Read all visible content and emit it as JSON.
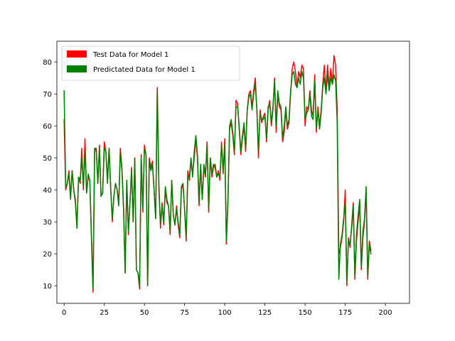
{
  "chart_data": {
    "type": "line",
    "title": "",
    "xlabel": "",
    "ylabel": "",
    "xlim": [
      -4.5,
      215
    ],
    "ylim": [
      4.5,
      86.5
    ],
    "x_ticks": [
      0,
      25,
      50,
      75,
      100,
      125,
      150,
      175,
      200
    ],
    "y_ticks": [
      10,
      20,
      30,
      40,
      50,
      60,
      70,
      80
    ],
    "grid": false,
    "legend_position": "top-left",
    "series": [
      {
        "name": "Test Data for Model 1",
        "color": "#ff0000",
        "values": [
          62,
          40,
          42,
          46,
          38,
          46,
          40,
          37,
          28,
          44,
          42,
          53,
          40,
          56,
          39,
          44,
          43,
          25,
          8,
          52,
          53,
          42,
          54,
          38,
          39,
          55,
          52,
          43,
          53,
          41,
          30,
          38,
          42,
          40,
          36,
          53,
          47,
          35,
          14,
          43,
          26,
          36,
          47,
          30,
          50,
          15,
          14,
          9,
          51,
          33,
          54,
          51,
          10,
          50,
          47,
          49,
          40,
          31,
          72,
          42,
          28,
          36,
          29,
          40,
          36,
          35,
          26,
          43,
          32,
          29,
          35,
          29,
          25,
          40,
          42,
          34,
          24,
          46,
          43,
          49,
          45,
          50,
          56,
          50,
          35,
          47,
          37,
          47,
          44,
          55,
          33,
          50,
          44,
          47,
          48,
          44,
          46,
          43,
          55,
          45,
          56,
          23,
          36,
          59,
          61,
          57,
          51,
          68,
          67,
          59,
          51,
          56,
          60,
          52,
          65,
          70,
          71,
          66,
          71,
          75,
          65,
          50,
          65,
          61,
          63,
          64,
          55,
          65,
          68,
          60,
          65,
          75,
          58,
          70,
          66,
          65,
          55,
          58,
          65,
          59,
          61,
          70,
          78,
          80,
          77,
          72,
          77,
          75,
          79,
          78,
          60,
          66,
          65,
          71,
          65,
          63,
          76,
          58,
          66,
          60,
          65,
          73,
          79,
          71,
          79,
          72,
          78,
          73,
          82,
          79,
          65,
          20,
          22,
          25,
          30,
          40,
          10,
          25,
          22,
          29,
          36,
          12,
          24,
          30,
          36,
          15,
          25,
          30,
          40,
          12,
          24,
          21
        ]
      },
      {
        "name": "Predictated Data for Model 1",
        "color": "#008000",
        "values": [
          71,
          41,
          42,
          45,
          37,
          46,
          40,
          36,
          28,
          44,
          43,
          50,
          41,
          52,
          39,
          45,
          43,
          26,
          9,
          53,
          53,
          42,
          53,
          38,
          39,
          53,
          52,
          42,
          53,
          40,
          31,
          38,
          42,
          40,
          35,
          52,
          46,
          34,
          14,
          43,
          27,
          36,
          46,
          30,
          50,
          15,
          14,
          10,
          50,
          34,
          53,
          51,
          10,
          49,
          46,
          48,
          40,
          31,
          71,
          40,
          29,
          35,
          30,
          41,
          37,
          35,
          27,
          43,
          32,
          29,
          34,
          30,
          26,
          41,
          42,
          34,
          25,
          44,
          44,
          50,
          44,
          52,
          57,
          51,
          36,
          48,
          37,
          48,
          45,
          54,
          34,
          50,
          45,
          48,
          47,
          44,
          45,
          44,
          54,
          46,
          54,
          24,
          37,
          60,
          62,
          58,
          52,
          66,
          66,
          60,
          52,
          57,
          61,
          53,
          65,
          69,
          70,
          65,
          70,
          73,
          65,
          52,
          64,
          62,
          62,
          63,
          56,
          66,
          67,
          61,
          66,
          74,
          60,
          71,
          67,
          66,
          56,
          60,
          66,
          60,
          62,
          71,
          76,
          77,
          73,
          72,
          75,
          73,
          77,
          75,
          62,
          64,
          65,
          70,
          63,
          62,
          74,
          59,
          65,
          59,
          64,
          72,
          75,
          70,
          76,
          71,
          75,
          73,
          76,
          74,
          61,
          12,
          23,
          26,
          31,
          36,
          11,
          24,
          23,
          28,
          35,
          13,
          26,
          32,
          37,
          16,
          27,
          31,
          41,
          13,
          23,
          20
        ]
      }
    ]
  }
}
